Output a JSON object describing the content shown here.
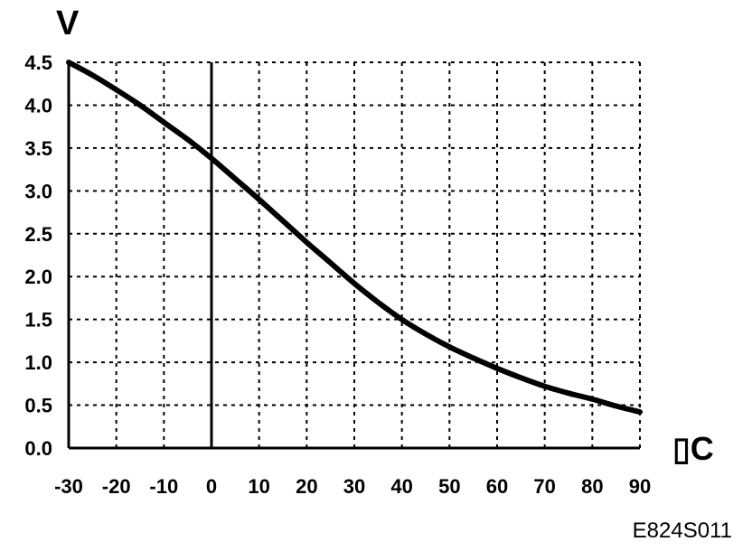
{
  "chart_data": {
    "type": "line",
    "ylabel": "V",
    "xlabel": "▯C",
    "xlim": [
      -30,
      90
    ],
    "ylim": [
      0,
      4.5
    ],
    "x_ticks": [
      "-30",
      "-20",
      "-10",
      "0",
      "10",
      "20",
      "30",
      "40",
      "50",
      "60",
      "70",
      "80",
      "90"
    ],
    "y_ticks": [
      "0.0",
      "0.5",
      "1.0",
      "1.5",
      "2.0",
      "2.5",
      "3.0",
      "3.5",
      "4.0",
      "4.5"
    ],
    "grid": true,
    "grid_style": "dashed",
    "series": [
      {
        "x": [
          -30,
          -25,
          -20,
          -15,
          -10,
          -5,
          0,
          5,
          10,
          15,
          20,
          25,
          30,
          35,
          40,
          45,
          50,
          55,
          60,
          65,
          70,
          75,
          80,
          85,
          90
        ],
        "y": [
          4.5,
          4.35,
          4.18,
          4.0,
          3.8,
          3.6,
          3.38,
          3.14,
          2.9,
          2.65,
          2.4,
          2.16,
          1.92,
          1.7,
          1.5,
          1.33,
          1.18,
          1.05,
          0.93,
          0.82,
          0.72,
          0.64,
          0.57,
          0.49,
          0.42
        ]
      }
    ],
    "vertical_line_at_x": 0
  },
  "figure_code": "E824S011",
  "colors": {
    "line": "#000000",
    "grid": "#000000",
    "background": "#ffffff"
  }
}
